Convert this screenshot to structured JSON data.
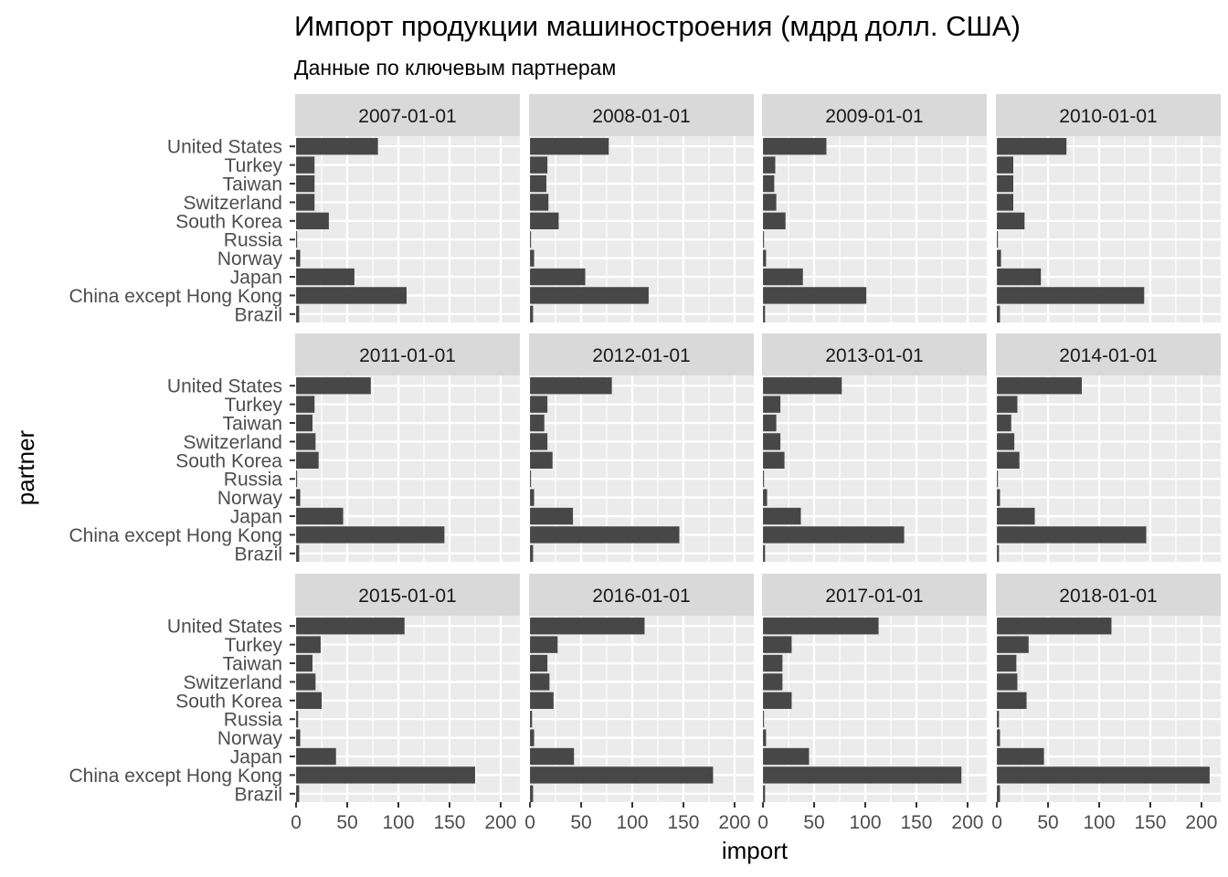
{
  "chart_data": {
    "type": "bar",
    "orientation": "horizontal",
    "title": "Импорт продукции машиностроения (мдрд долл. США)",
    "subtitle": "Данные по ключевым партнерам",
    "xlabel": "import",
    "ylabel": "partner",
    "xlim": [
      0,
      215
    ],
    "x_ticks": [
      "0",
      "50",
      "100",
      "150",
      "200"
    ],
    "grid": true,
    "categories": [
      "United States",
      "Turkey",
      "Taiwan",
      "Switzerland",
      "South Korea",
      "Russia",
      "Norway",
      "Japan",
      "China except Hong Kong",
      "Brazil"
    ],
    "panels": [
      {
        "label": "2007-01-01",
        "values": [
          80,
          18,
          18,
          18,
          32,
          1,
          4,
          57,
          108,
          3
        ]
      },
      {
        "label": "2008-01-01",
        "values": [
          77,
          17,
          16,
          18,
          28,
          1,
          4,
          54,
          116,
          3
        ]
      },
      {
        "label": "2009-01-01",
        "values": [
          62,
          12,
          11,
          13,
          22,
          1,
          3,
          39,
          101,
          2
        ]
      },
      {
        "label": "2010-01-01",
        "values": [
          68,
          16,
          16,
          16,
          27,
          1,
          4,
          43,
          144,
          3
        ]
      },
      {
        "label": "2011-01-01",
        "values": [
          73,
          18,
          16,
          19,
          22,
          1,
          4,
          46,
          145,
          3
        ]
      },
      {
        "label": "2012-01-01",
        "values": [
          80,
          17,
          14,
          17,
          22,
          1,
          4,
          42,
          146,
          3
        ]
      },
      {
        "label": "2013-01-01",
        "values": [
          77,
          17,
          13,
          17,
          21,
          1,
          4,
          37,
          138,
          2
        ]
      },
      {
        "label": "2014-01-01",
        "values": [
          83,
          20,
          14,
          17,
          22,
          1,
          3,
          37,
          146,
          2
        ]
      },
      {
        "label": "2015-01-01",
        "values": [
          106,
          24,
          16,
          19,
          25,
          2,
          4,
          39,
          175,
          3
        ]
      },
      {
        "label": "2016-01-01",
        "values": [
          112,
          27,
          17,
          19,
          23,
          2,
          4,
          43,
          179,
          3
        ]
      },
      {
        "label": "2017-01-01",
        "values": [
          113,
          28,
          19,
          19,
          28,
          1,
          3,
          45,
          194,
          2
        ]
      },
      {
        "label": "2018-01-01",
        "values": [
          112,
          31,
          19,
          20,
          29,
          2,
          3,
          46,
          208,
          3
        ]
      }
    ],
    "colors": {
      "bar": "#474747",
      "panel_bg": "#ebebeb",
      "strip_bg": "#d9d9d9",
      "grid": "#ffffff",
      "axis_text": "#4d4d4d"
    }
  }
}
